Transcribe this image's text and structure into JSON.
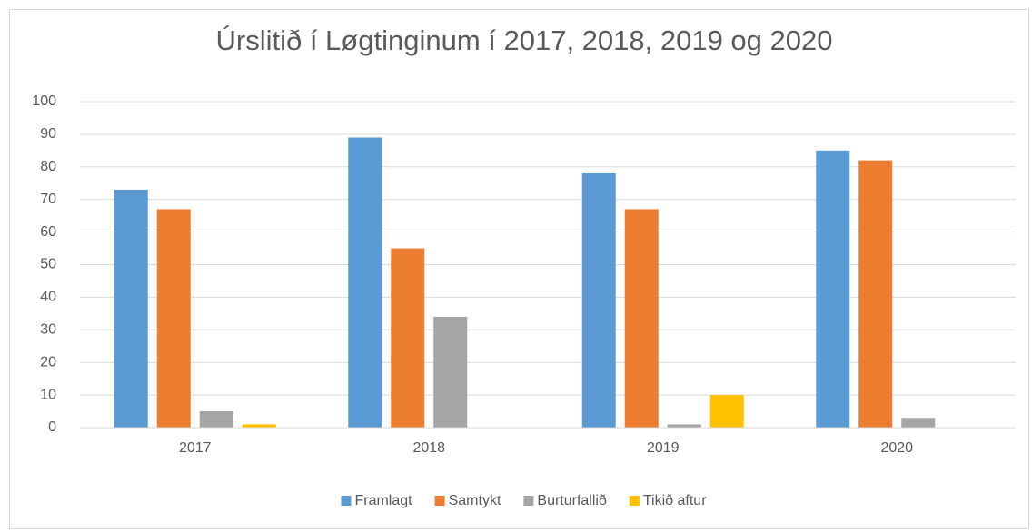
{
  "chart_data": {
    "type": "bar",
    "title": "Úrslitið í Løgtinginum í 2017, 2018, 2019 og 2020",
    "categories": [
      "2017",
      "2018",
      "2019",
      "2020"
    ],
    "series": [
      {
        "name": "Framlagt",
        "color": "#5b9bd5",
        "values": [
          73,
          89,
          78,
          85
        ]
      },
      {
        "name": "Samtykt",
        "color": "#ed7d31",
        "values": [
          67,
          55,
          67,
          82
        ]
      },
      {
        "name": "Burturfallið",
        "color": "#a5a5a5",
        "values": [
          5,
          34,
          1,
          3
        ]
      },
      {
        "name": "Tikið aftur",
        "color": "#ffc000",
        "values": [
          1,
          0,
          10,
          0
        ]
      }
    ],
    "ylim": [
      0,
      100
    ],
    "yticks": [
      0,
      10,
      20,
      30,
      40,
      50,
      60,
      70,
      80,
      90,
      100
    ],
    "grid": true,
    "legend": "bottom"
  }
}
